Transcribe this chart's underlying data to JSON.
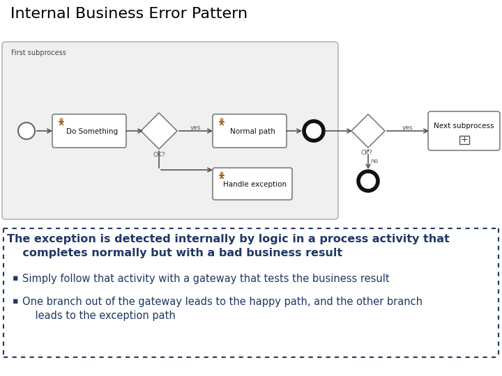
{
  "title": "Internal Business Error Pattern",
  "title_fontsize": 16,
  "title_color": "#000000",
  "bg_color": "#ffffff",
  "text_box_border_color": "#1F3864",
  "text_box_bg": "#ffffff",
  "main_text_line1": "The exception is detected internally by logic in a process activity that",
  "main_text_line2": "    completes normally but with a bad business result",
  "bullet1": "Simply follow that activity with a gateway that tests the business result",
  "bullet2_line1": "One branch out of the gateway leads to the happy path, and the other branch",
  "bullet2_line2": "    leads to the exception path",
  "main_text_color": "#1F3864",
  "bullet_color": "#1F3864",
  "diagram_border_color": "#aaaaaa",
  "node_border_color": "#666666",
  "node_bg": "#ffffff",
  "subprocess_bg": "#f0f0f0",
  "arrow_color": "#555555",
  "label_color": "#555555",
  "subprocess_label": "First subprocess",
  "next_subprocess_label": "Next subprocess",
  "person_head_color": "#c8a060",
  "person_body_color": "#8B5E20"
}
